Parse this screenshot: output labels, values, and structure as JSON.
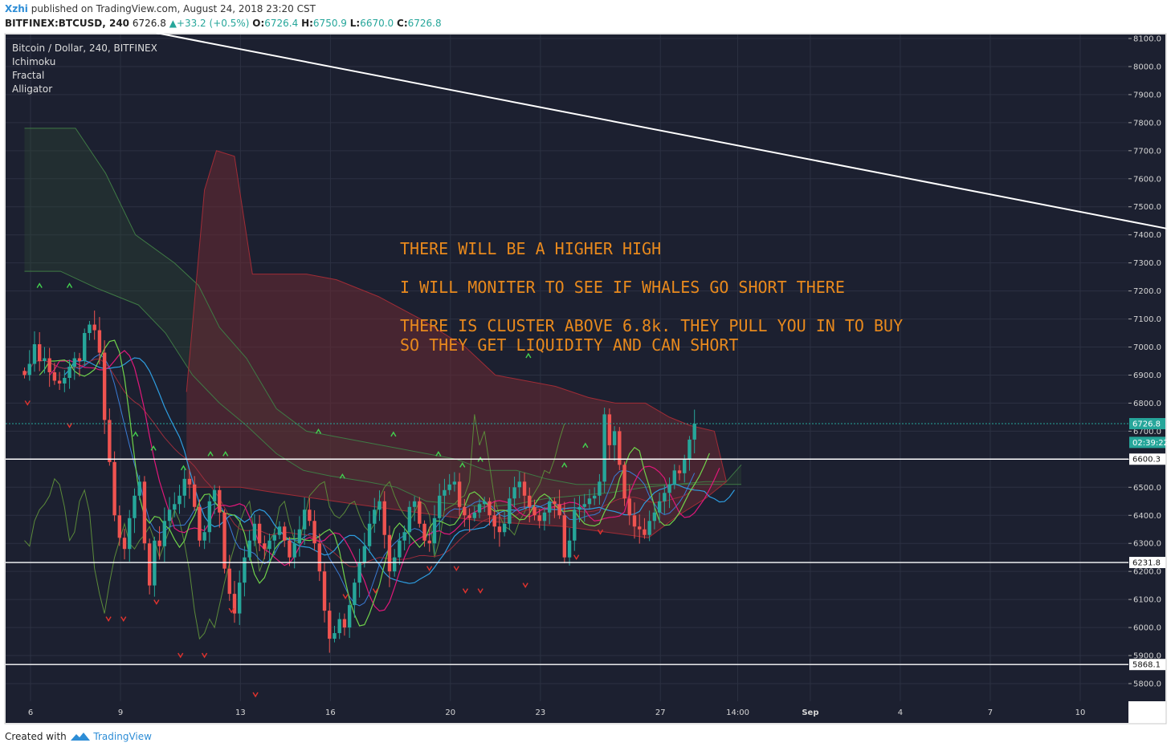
{
  "header": {
    "user": "Xzhi",
    "published": "published on TradingView.com, August 24, 2018 23:20 CST",
    "symbol": "BITFINEX:BTCUSD, 240",
    "last": "6726.8",
    "change": "+33.2 (+0.5%)",
    "o_label": "O:",
    "o": "6726.4",
    "h_label": "H:",
    "h": "6750.9",
    "l_label": "L:",
    "l": "6670.0",
    "c_label": "C:",
    "c": "6726.8"
  },
  "legend": [
    "Bitcoin / Dollar, 240, BITFINEX",
    "Ichimoku",
    "Fractal",
    "Alligator"
  ],
  "notes": [
    "THERE WILL BE A HIGHER HIGH",
    "I WILL MONITER TO SEE IF WHALES GO SHORT THERE",
    "THERE IS CLUSTER ABOVE 6.8k. THEY PULL YOU IN TO BUY",
    "SO THEY GET LIQUIDITY AND CAN SHORT"
  ],
  "footer": {
    "created": "Created with",
    "brand": "TradingView"
  },
  "colors": {
    "background": "#1c2030",
    "grid": "#2c3142",
    "up": "#26a69a",
    "down": "#ef5350",
    "kumo_bear": "#6b2a33",
    "kumo_bull": "#2f4a33",
    "note": "#e8891d",
    "jaw": "#2e9de0",
    "teeth": "#e0187a",
    "lips": "#6fd24a"
  },
  "chart_data": {
    "type": "candlestick",
    "ylim": [
      5730,
      8125
    ],
    "y_ticks": [
      "8100.0",
      "8000.0",
      "7900.0",
      "7800.0",
      "7700.0",
      "7600.0",
      "7500.0",
      "7400.0",
      "7300.0",
      "7200.0",
      "7100.0",
      "7000.0",
      "6900.0",
      "6800.0",
      "6700.0",
      "6600.0",
      "6500.0",
      "6400.0",
      "6300.0",
      "6200.0",
      "6100.0",
      "6000.0",
      "5900.0",
      "5800.0"
    ],
    "x_ticks": [
      {
        "label": "6",
        "day": 6
      },
      {
        "label": "9",
        "day": 9
      },
      {
        "label": "13",
        "day": 13
      },
      {
        "label": "16",
        "day": 16
      },
      {
        "label": "20",
        "day": 20
      },
      {
        "label": "23",
        "day": 23
      },
      {
        "label": "27",
        "day": 27
      },
      {
        "label": "14:00",
        "day": 29.58
      },
      {
        "label": "Sep",
        "day": 32
      },
      {
        "label": "4",
        "day": 35
      },
      {
        "label": "7",
        "day": 38
      },
      {
        "label": "10",
        "day": 41
      }
    ],
    "price_labels": [
      {
        "label": "6726.8",
        "value": 6726.8,
        "kind": "last"
      },
      {
        "label": "02:39:22",
        "value": 6660,
        "kind": "countdown"
      },
      {
        "label": "6600.3",
        "value": 6600.3,
        "kind": "level"
      },
      {
        "label": "6231.8",
        "value": 6231.8,
        "kind": "level"
      },
      {
        "label": "5868.1",
        "value": 5868.1,
        "kind": "level"
      }
    ],
    "trendline": {
      "from": {
        "day": 10.2,
        "price": 8120
      },
      "to": {
        "day": 44,
        "price": 7420
      }
    },
    "candles_x": {
      "start_day": 5.8,
      "step_days": 0.1667
    },
    "closes": [
      6900,
      6940,
      7010,
      6950,
      6960,
      6910,
      6880,
      6870,
      6890,
      6930,
      6960,
      6950,
      7050,
      7080,
      7060,
      6980,
      6740,
      6590,
      6400,
      6320,
      6280,
      6390,
      6470,
      6520,
      6300,
      6150,
      6310,
      6290,
      6380,
      6420,
      6440,
      6470,
      6530,
      6510,
      6430,
      6310,
      6340,
      6450,
      6490,
      6410,
      6210,
      6120,
      6050,
      6160,
      6250,
      6310,
      6370,
      6300,
      6280,
      6310,
      6330,
      6360,
      6310,
      6250,
      6300,
      6350,
      6420,
      6380,
      6300,
      6200,
      6060,
      5960,
      5980,
      6030,
      6000,
      6080,
      6160,
      6230,
      6290,
      6370,
      6420,
      6450,
      6330,
      6200,
      6250,
      6310,
      6340,
      6430,
      6450,
      6370,
      6310,
      6300,
      6390,
      6470,
      6490,
      6510,
      6520,
      6430,
      6400,
      6390,
      6410,
      6440,
      6450,
      6400,
      6360,
      6340,
      6370,
      6460,
      6500,
      6520,
      6470,
      6430,
      6400,
      6380,
      6410,
      6450,
      6440,
      6400,
      6250,
      6310,
      6420,
      6430,
      6440,
      6460,
      6470,
      6520,
      6760,
      6650,
      6700,
      6580,
      6460,
      6400,
      6360,
      6350,
      6330,
      6380,
      6410,
      6450,
      6480,
      6510,
      6560,
      6550,
      6600,
      6670,
      6726.8
    ],
    "fractals_up": [
      {
        "day": 6.3,
        "price": 7220
      },
      {
        "day": 7.3,
        "price": 7220
      },
      {
        "day": 9.5,
        "price": 6690
      },
      {
        "day": 10.1,
        "price": 6640
      },
      {
        "day": 11.1,
        "price": 6570
      },
      {
        "day": 12.0,
        "price": 6620
      },
      {
        "day": 12.5,
        "price": 6620
      },
      {
        "day": 15.6,
        "price": 6700
      },
      {
        "day": 16.4,
        "price": 6540
      },
      {
        "day": 18.1,
        "price": 6690
      },
      {
        "day": 19.6,
        "price": 6620
      },
      {
        "day": 20.4,
        "price": 6580
      },
      {
        "day": 21.0,
        "price": 6600
      },
      {
        "day": 22.6,
        "price": 6970
      },
      {
        "day": 23.8,
        "price": 6580
      },
      {
        "day": 24.5,
        "price": 6650
      }
    ],
    "fractals_down": [
      {
        "day": 5.9,
        "price": 6800
      },
      {
        "day": 7.3,
        "price": 6720
      },
      {
        "day": 8.6,
        "price": 6030
      },
      {
        "day": 9.1,
        "price": 6030
      },
      {
        "day": 10.2,
        "price": 6090
      },
      {
        "day": 11.0,
        "price": 5900
      },
      {
        "day": 11.8,
        "price": 5900
      },
      {
        "day": 12.7,
        "price": 6060
      },
      {
        "day": 13.5,
        "price": 5760
      },
      {
        "day": 16.5,
        "price": 6110
      },
      {
        "day": 17.5,
        "price": 6130
      },
      {
        "day": 19.3,
        "price": 6210
      },
      {
        "day": 20.2,
        "price": 6210
      },
      {
        "day": 20.5,
        "price": 6130
      },
      {
        "day": 21.0,
        "price": 6130
      },
      {
        "day": 22.5,
        "price": 6150
      },
      {
        "day": 24.2,
        "price": 6250
      },
      {
        "day": 25.0,
        "price": 6340
      }
    ],
    "kumo": {
      "span_a": [
        [
          5.8,
          7270
        ],
        [
          7.0,
          7270
        ],
        [
          8.2,
          7210
        ],
        [
          9.6,
          7150
        ],
        [
          10.5,
          7050
        ],
        [
          11.4,
          6900
        ],
        [
          12.3,
          6800
        ],
        [
          13.2,
          6720
        ],
        [
          14.2,
          6620
        ],
        [
          15.1,
          6560
        ],
        [
          16.0,
          6540
        ],
        [
          17.2,
          6520
        ],
        [
          18.2,
          6500
        ],
        [
          19.2,
          6450
        ],
        [
          20.2,
          6440
        ],
        [
          21.2,
          6430
        ],
        [
          22.2,
          6440
        ],
        [
          23.2,
          6460
        ],
        [
          24.2,
          6470
        ],
        [
          25.3,
          6480
        ],
        [
          26.5,
          6500
        ],
        [
          27.5,
          6510
        ],
        [
          28.5,
          6520
        ],
        [
          29.2,
          6520
        ],
        [
          29.7,
          6580
        ]
      ],
      "span_b": [
        [
          5.8,
          7780
        ],
        [
          7.5,
          7780
        ],
        [
          8.5,
          7620
        ],
        [
          9.5,
          7400
        ],
        [
          10.8,
          7300
        ],
        [
          11.6,
          7220
        ],
        [
          12.3,
          7070
        ],
        [
          13.2,
          6960
        ],
        [
          14.2,
          6780
        ],
        [
          15.2,
          6700
        ],
        [
          16.2,
          6680
        ],
        [
          17.2,
          6660
        ],
        [
          18.2,
          6640
        ],
        [
          19.2,
          6620
        ],
        [
          20.2,
          6600
        ],
        [
          21.2,
          6560
        ],
        [
          22.2,
          6560
        ],
        [
          23.2,
          6530
        ],
        [
          24.2,
          6510
        ],
        [
          25.3,
          6510
        ],
        [
          26.5,
          6510
        ],
        [
          27.5,
          6510
        ],
        [
          28.5,
          6510
        ],
        [
          29.2,
          6510
        ],
        [
          29.7,
          6510
        ]
      ],
      "red_top": [
        [
          11.2,
          6840
        ],
        [
          11.8,
          7560
        ],
        [
          12.2,
          7700
        ],
        [
          12.8,
          7680
        ],
        [
          13.4,
          7260
        ],
        [
          14.2,
          7260
        ],
        [
          15.2,
          7260
        ],
        [
          16.2,
          7240
        ],
        [
          17.6,
          7180
        ],
        [
          19.0,
          7100
        ],
        [
          20.5,
          7000
        ],
        [
          21.5,
          6900
        ],
        [
          22.5,
          6880
        ],
        [
          23.5,
          6860
        ],
        [
          24.6,
          6820
        ],
        [
          25.5,
          6800
        ],
        [
          26.5,
          6800
        ],
        [
          27.3,
          6750
        ],
        [
          28.0,
          6720
        ],
        [
          28.8,
          6700
        ],
        [
          29.2,
          6520
        ]
      ],
      "red_bottom": [
        [
          11.2,
          6500
        ],
        [
          13.0,
          6500
        ],
        [
          14.2,
          6480
        ],
        [
          15.5,
          6460
        ],
        [
          16.8,
          6440
        ],
        [
          18.2,
          6420
        ],
        [
          19.6,
          6400
        ],
        [
          21.0,
          6380
        ],
        [
          22.4,
          6370
        ],
        [
          23.8,
          6360
        ],
        [
          25.2,
          6340
        ],
        [
          26.6,
          6320
        ],
        [
          27.6,
          6400
        ],
        [
          28.5,
          6460
        ],
        [
          29.2,
          6520
        ]
      ]
    }
  }
}
